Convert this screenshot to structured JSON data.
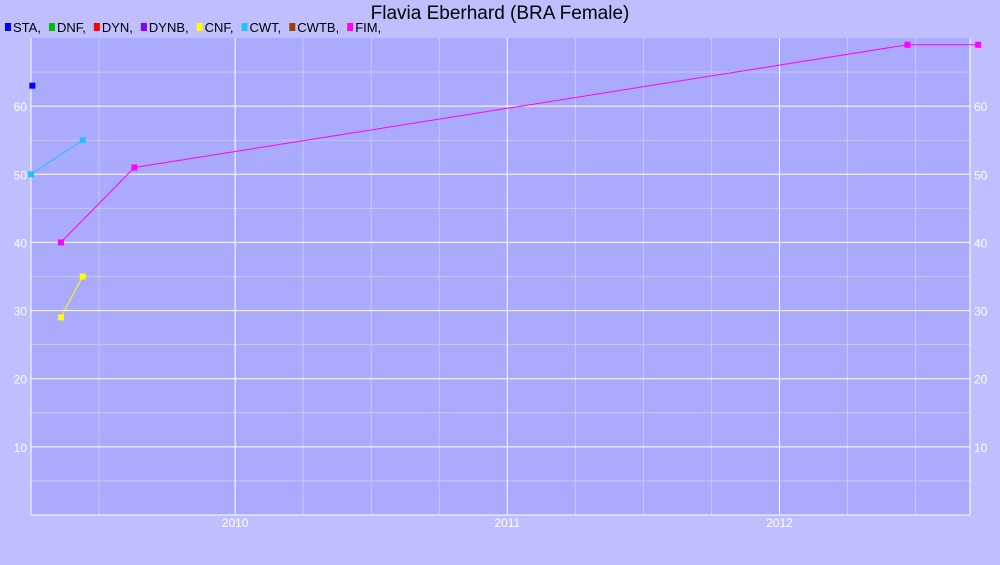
{
  "chart_data": {
    "type": "line",
    "title": "Flavia Eberhard (BRA Female)",
    "xlabel": "",
    "ylabel": "",
    "x_range": [
      "2009-04-01",
      "2012-09-15"
    ],
    "xlim": [
      2009.25,
      2012.7
    ],
    "ylim": [
      0,
      70
    ],
    "y_ticks": [
      10,
      20,
      30,
      40,
      50,
      60
    ],
    "x_ticks": [
      {
        "label": "2010",
        "value": 2010.0
      },
      {
        "label": "2011",
        "value": 2011.0
      },
      {
        "label": "2012",
        "value": 2012.0
      }
    ],
    "x_minor_ticks": [
      2009.5,
      2010.25,
      2010.5,
      2010.75,
      2011.25,
      2011.5,
      2011.75,
      2012.25,
      2012.5
    ],
    "grid": true,
    "legend_position": "top-left",
    "series": [
      {
        "name": "STA",
        "color": "#0000ff",
        "points": [
          {
            "x": 2009.255,
            "y": 63
          }
        ]
      },
      {
        "name": "DNF",
        "color": "#00c000",
        "points": []
      },
      {
        "name": "DYN",
        "color": "#ff0000",
        "points": []
      },
      {
        "name": "DYNB",
        "color": "#8000ff",
        "points": []
      },
      {
        "name": "CNF",
        "color": "#ffff00",
        "points": [
          {
            "x": 2009.36,
            "y": 29
          },
          {
            "x": 2009.44,
            "y": 35
          }
        ]
      },
      {
        "name": "CWT",
        "color": "#20c0ff",
        "points": [
          {
            "x": 2009.25,
            "y": 50
          },
          {
            "x": 2009.44,
            "y": 55
          }
        ]
      },
      {
        "name": "CWTB",
        "color": "#a04000",
        "points": []
      },
      {
        "name": "FIM",
        "color": "#ff00ff",
        "points": [
          {
            "x": 2009.36,
            "y": 40
          },
          {
            "x": 2009.63,
            "y": 51
          },
          {
            "x": 2012.47,
            "y": 69
          },
          {
            "x": 2012.73,
            "y": 69
          }
        ]
      }
    ]
  }
}
